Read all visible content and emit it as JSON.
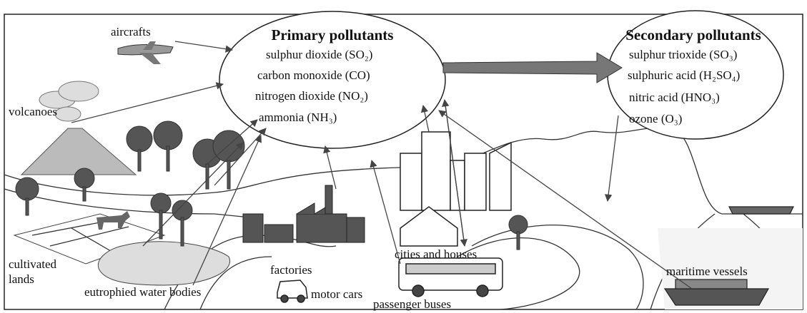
{
  "diagram": {
    "primary": {
      "title": "Primary pollutants",
      "items": [
        "sulphur dioxide (SO₂)",
        "carbon monoxide (CO)",
        "nitrogen dioxide (NO₂)",
        "ammonia (NH₃)"
      ]
    },
    "secondary": {
      "title": "Secondary pollutants",
      "items": [
        "sulphur trioxide (SO₃)",
        "sulphuric acid (H₂SO₄)",
        "nitric acid (HNO₃)",
        "ozone (O₃)"
      ]
    },
    "sources": {
      "aircrafts": "aircrafts",
      "volcanoes": "volcanoes",
      "cultivated_lands": [
        "cultivated",
        "lands"
      ],
      "water_bodies": "eutrophied water bodies",
      "factories": "factories",
      "motor_cars": "motor cars",
      "passenger_buses": "passenger buses",
      "cities": "cities and houses",
      "maritime": "maritime vessels"
    }
  }
}
